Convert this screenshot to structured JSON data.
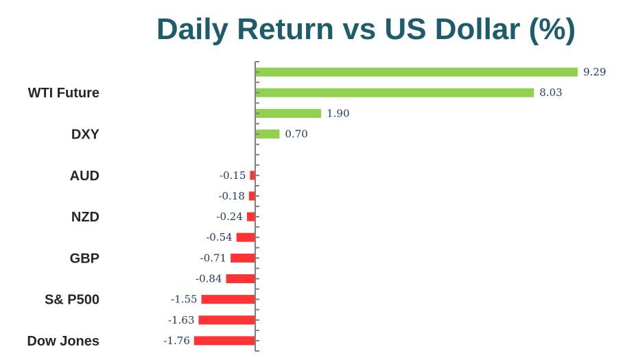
{
  "chart_data": {
    "type": "bar",
    "orientation": "horizontal",
    "title": "Daily Return vs US Dollar (%)",
    "categories": [
      "",
      "WTI Future",
      "",
      "DXY",
      "",
      "AUD",
      "",
      "NZD",
      "",
      "GBP",
      "",
      "S& P500",
      "",
      "Dow Jones"
    ],
    "values": [
      9.29,
      8.03,
      1.9,
      0.7,
      0,
      -0.15,
      -0.18,
      -0.24,
      -0.54,
      -0.71,
      -0.84,
      -1.55,
      -1.63,
      -1.76
    ],
    "data_labels": [
      "9.29",
      "8.03",
      "1.90",
      "0.70",
      "",
      "-0.15",
      "-0.18",
      "-0.24",
      "-0.54",
      "-0.71",
      "-0.84",
      "-1.55",
      "-1.63",
      "-1.76"
    ],
    "xlim": [
      -1.76,
      9.29
    ],
    "positive_color": "#92d050",
    "negative_color": "#ff3333",
    "axis_color": "#7f7f7f"
  }
}
